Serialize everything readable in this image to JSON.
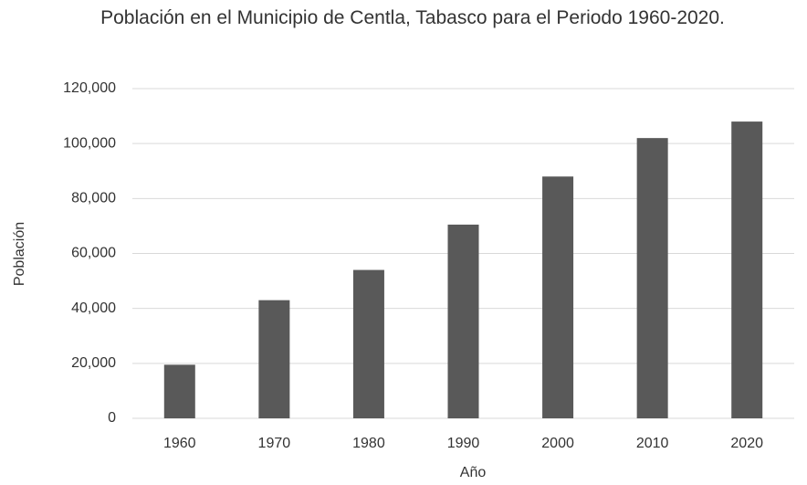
{
  "chart_data": {
    "type": "bar",
    "title": "Población en el Municipio de Centla, Tabasco para el Periodo 1960-2020.",
    "x_label": "Año",
    "y_label": "Población",
    "categories": [
      "1960",
      "1970",
      "1980",
      "1990",
      "2000",
      "2010",
      "2020"
    ],
    "values": [
      19500,
      43000,
      54000,
      70500,
      88000,
      102000,
      108000
    ],
    "color": "#595959",
    "ylim": [
      0,
      120000
    ],
    "yticks": [
      0,
      {
        "value": 20000,
        "label": "20,000"
      },
      {
        "value": 40000,
        "label": "40,000"
      },
      {
        "value": 60000,
        "label": "60,000"
      },
      {
        "value": 80000,
        "label": "80,000"
      },
      {
        "value": 100000,
        "label": "100,000"
      },
      {
        "value": 120000,
        "label": "120,000"
      }
    ],
    "grid": true
  }
}
